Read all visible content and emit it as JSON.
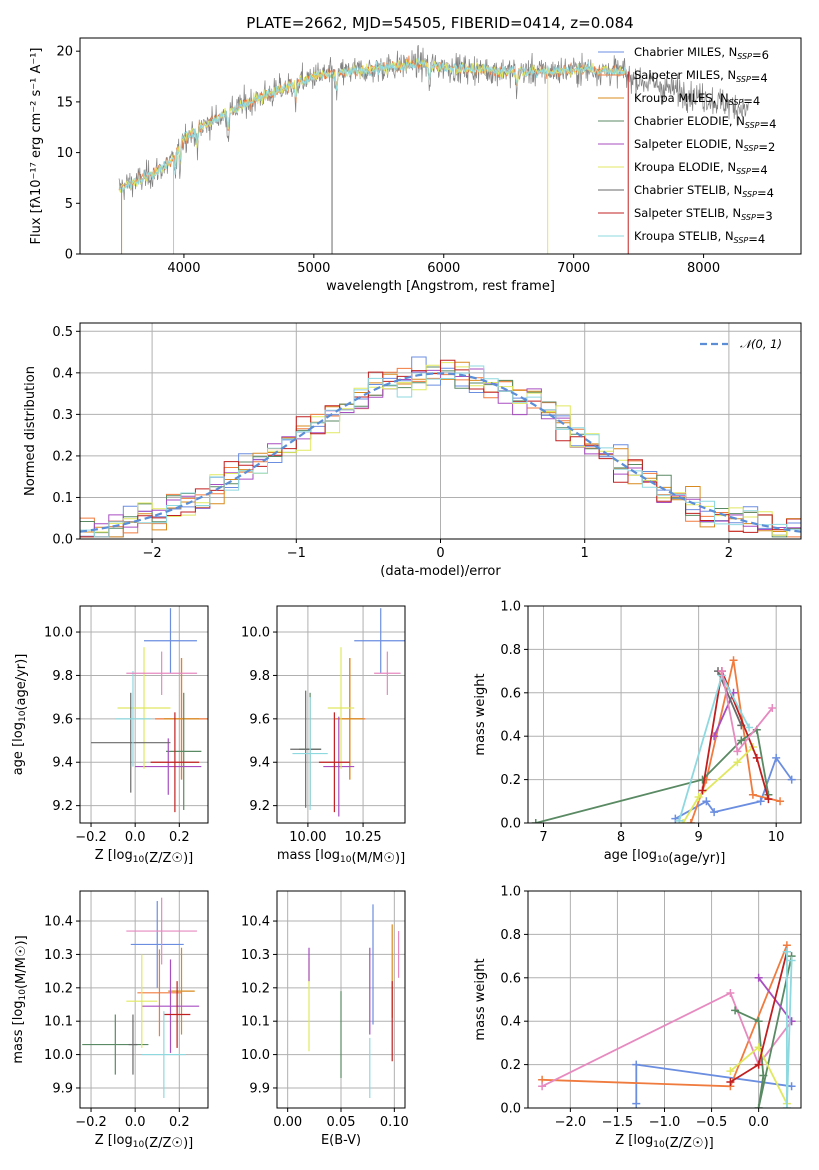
{
  "figure": {
    "title": "PLATE=2662, MJD=54505, FIBERID=0414, z=0.084"
  },
  "colors": {
    "series": [
      "#6b8ee0",
      "#f07b3f",
      "#d98a1e",
      "#5a8a63",
      "#a74ec0",
      "#e0e860",
      "#6a6a6a",
      "#c02020",
      "#8ed8e0"
    ],
    "pink": "#e68ac0",
    "normal": "#5b8ed6"
  },
  "chart_data": [
    {
      "id": "spectrum",
      "type": "line",
      "xlabel": "wavelength [Angstrom, rest frame]",
      "ylabel": "Flux [fλ10⁻¹⁷ erg cm⁻² s⁻¹ A⁻¹]",
      "xlim": [
        3200,
        8750
      ],
      "ylim": [
        0,
        21.3
      ],
      "xticks": [
        4000,
        5000,
        6000,
        7000,
        8000
      ],
      "yticks": [
        0,
        5,
        10,
        15,
        20
      ],
      "grid": false,
      "legend_position": "right",
      "data_range_x": [
        3500,
        7400
      ],
      "continuum_points": [
        [
          3500,
          6.5
        ],
        [
          3700,
          7.5
        ],
        [
          3900,
          9
        ],
        [
          4000,
          11.5
        ],
        [
          4200,
          13
        ],
        [
          4500,
          15
        ],
        [
          5000,
          17.5
        ],
        [
          5300,
          18
        ],
        [
          5800,
          18.8
        ],
        [
          6100,
          18.3
        ],
        [
          6500,
          18
        ],
        [
          6800,
          18
        ],
        [
          7100,
          18.2
        ],
        [
          7400,
          18
        ]
      ],
      "observed_extends_to": 8350,
      "series": [
        {
          "name": "Chabrier MILES, N_SSP=6"
        },
        {
          "name": "Salpeter MILES, N_SSP=4"
        },
        {
          "name": "Kroupa MILES, N_SSP=4"
        },
        {
          "name": "Chabrier ELODIE, N_SSP=4"
        },
        {
          "name": "Salpeter ELODIE, N_SSP=2"
        },
        {
          "name": "Kroupa ELODIE, N_SSP=4"
        },
        {
          "name": "Chabrier STELIB, N_SSP=4"
        },
        {
          "name": "Salpeter STELIB, N_SSP=3"
        },
        {
          "name": "Kroupa STELIB, N_SSP=4"
        }
      ]
    },
    {
      "id": "residuals",
      "type": "line",
      "xlabel": "(data-model)/error",
      "ylabel": "Normed distribution",
      "xlim": [
        -2.5,
        2.5
      ],
      "ylim": [
        0,
        0.52
      ],
      "xticks": [
        -2,
        -1,
        0,
        1,
        2
      ],
      "yticks": [
        0.0,
        0.1,
        0.2,
        0.3,
        0.4,
        0.5
      ],
      "grid": true,
      "legend": "𝒩(0, 1)",
      "legend_position": "top-right",
      "bin_width": 0.1
    },
    {
      "id": "age-vs-Z",
      "type": "scatter",
      "xlabel": "Z [log10(Z/Z☉)]",
      "ylabel": "age  [log10(age/yr)]",
      "xlim": [
        -0.25,
        0.33
      ],
      "ylim": [
        9.12,
        10.12
      ],
      "xticks": [
        -0.2,
        0.0,
        0.2
      ],
      "yticks": [
        9.2,
        9.4,
        9.6,
        9.8,
        10.0
      ],
      "grid": true,
      "points": [
        {
          "x": 0.16,
          "y": 9.96,
          "ex": 0.12,
          "ey": 0.15,
          "c": 0
        },
        {
          "x": 0.21,
          "y": 9.6,
          "ex": 0.12,
          "ey": 0.28,
          "c": 1
        },
        {
          "x": 0.21,
          "y": 9.6,
          "ex": 0.08,
          "ey": 0.28,
          "c": 2
        },
        {
          "x": 0.22,
          "y": 9.45,
          "ex": 0.08,
          "ey": 0.27,
          "c": 3
        },
        {
          "x": 0.15,
          "y": 9.38,
          "ex": 0.15,
          "ey": 0.13,
          "c": 4
        },
        {
          "x": 0.04,
          "y": 9.65,
          "ex": 0.12,
          "ey": 0.28,
          "c": 5
        },
        {
          "x": -0.02,
          "y": 9.49,
          "ex": 0.18,
          "ey": 0.23,
          "c": 6
        },
        {
          "x": 0.18,
          "y": 9.4,
          "ex": 0.11,
          "ey": 0.23,
          "c": 7
        },
        {
          "x": -0.01,
          "y": 9.6,
          "ex": 0.08,
          "ey": 0.22,
          "c": 8
        },
        {
          "x": 0.12,
          "y": 9.81,
          "ex": 0.16,
          "ey": 0.1,
          "c": "pink"
        }
      ]
    },
    {
      "id": "age-vs-mass",
      "type": "scatter",
      "xlabel": "mass [log10(M/M☉)]",
      "ylabel": "",
      "xlim": [
        9.86,
        10.44
      ],
      "ylim": [
        9.12,
        10.12
      ],
      "xticks": [
        10.0,
        10.25
      ],
      "yticks": [
        9.2,
        9.4,
        9.6,
        9.8,
        10.0
      ],
      "grid": true,
      "points": [
        {
          "x": 10.33,
          "y": 9.96,
          "ex": 0.12,
          "ey": 0.15,
          "c": 0
        },
        {
          "x": 10.19,
          "y": 9.6,
          "ex": 0.07,
          "ey": 0.28,
          "c": 1
        },
        {
          "x": 10.19,
          "y": 9.6,
          "ex": 0.06,
          "ey": 0.28,
          "c": 2
        },
        {
          "x": 10.01,
          "y": 9.46,
          "ex": 0.05,
          "ey": 0.26,
          "c": 3
        },
        {
          "x": 10.14,
          "y": 9.38,
          "ex": 0.07,
          "ey": 0.23,
          "c": 4
        },
        {
          "x": 10.15,
          "y": 9.65,
          "ex": 0.06,
          "ey": 0.28,
          "c": 5
        },
        {
          "x": 9.99,
          "y": 9.46,
          "ex": 0.07,
          "ey": 0.27,
          "c": 6
        },
        {
          "x": 10.12,
          "y": 9.4,
          "ex": 0.07,
          "ey": 0.23,
          "c": 7
        },
        {
          "x": 10.01,
          "y": 9.44,
          "ex": 0.08,
          "ey": 0.26,
          "c": 8
        },
        {
          "x": 10.36,
          "y": 9.81,
          "ex": 0.06,
          "ey": 0.1,
          "c": "pink"
        }
      ]
    },
    {
      "id": "weight-vs-age",
      "type": "line",
      "xlabel": "age  [log10(age/yr)]",
      "ylabel": "mass weight",
      "xlim": [
        6.8,
        10.32
      ],
      "ylim": [
        0,
        1.0
      ],
      "xticks": [
        7,
        8,
        9,
        10
      ],
      "yticks": [
        0.0,
        0.2,
        0.4,
        0.6,
        0.8,
        1.0
      ],
      "grid": true,
      "series": [
        {
          "c": 0,
          "points": [
            [
              8.7,
              0.02
            ],
            [
              9.1,
              0.1
            ],
            [
              9.2,
              0.05
            ],
            [
              9.8,
              0.1
            ],
            [
              10.0,
              0.3
            ],
            [
              10.2,
              0.2
            ]
          ]
        },
        {
          "c": 1,
          "points": [
            [
              8.9,
              0.0
            ],
            [
              9.1,
              0.2
            ],
            [
              9.45,
              0.75
            ],
            [
              9.7,
              0.13
            ],
            [
              10.05,
              0.1
            ]
          ]
        },
        {
          "c": 3,
          "points": [
            [
              6.9,
              0.0
            ],
            [
              9.05,
              0.2
            ],
            [
              9.55,
              0.38
            ],
            [
              9.75,
              0.43
            ],
            [
              9.9,
              0.13
            ]
          ]
        },
        {
          "c": 4,
          "points": [
            [
              9.2,
              0.4
            ],
            [
              9.45,
              0.6
            ]
          ]
        },
        {
          "c": 5,
          "points": [
            [
              8.8,
              0.0
            ],
            [
              9.0,
              0.12
            ],
            [
              9.5,
              0.28
            ],
            [
              9.7,
              0.35
            ]
          ]
        },
        {
          "c": 6,
          "points": [
            [
              9.25,
              0.7
            ],
            [
              9.55,
              0.45
            ]
          ]
        },
        {
          "c": 7,
          "points": [
            [
              9.05,
              0.15
            ],
            [
              9.3,
              0.7
            ],
            [
              9.75,
              0.3
            ],
            [
              9.9,
              0.11
            ]
          ]
        },
        {
          "c": 8,
          "points": [
            [
              8.75,
              0.01
            ],
            [
              9.3,
              0.68
            ],
            [
              9.65,
              0.44
            ]
          ]
        },
        {
          "c": "pink",
          "points": [
            [
              9.3,
              0.7
            ],
            [
              9.5,
              0.33
            ],
            [
              9.95,
              0.53
            ]
          ]
        }
      ]
    },
    {
      "id": "mass-vs-Z",
      "type": "scatter",
      "xlabel": "Z [log10(Z/Z☉)]",
      "ylabel": "mass [log10(M/M☉)]",
      "xlim": [
        -0.25,
        0.33
      ],
      "ylim": [
        9.84,
        10.49
      ],
      "xticks": [
        -0.2,
        0.0,
        0.2
      ],
      "yticks": [
        9.9,
        10.0,
        10.1,
        10.2,
        10.3,
        10.4
      ],
      "grid": true,
      "points": [
        {
          "x": 0.1,
          "y": 10.33,
          "ex": 0.12,
          "ey": 0.13,
          "c": 0
        },
        {
          "x": 0.11,
          "y": 10.185,
          "ex": 0.1,
          "ey": 0.13,
          "c": 1
        },
        {
          "x": 0.21,
          "y": 10.19,
          "ex": 0.06,
          "ey": 0.13,
          "c": 2
        },
        {
          "x": -0.09,
          "y": 10.03,
          "ex": 0.15,
          "ey": 0.09,
          "c": 3
        },
        {
          "x": 0.16,
          "y": 10.145,
          "ex": 0.13,
          "ey": 0.14,
          "c": 4
        },
        {
          "x": 0.03,
          "y": 10.16,
          "ex": 0.07,
          "ey": 0.14,
          "c": 5
        },
        {
          "x": -0.01,
          "y": 10.03,
          "ex": 0.02,
          "ey": 0.09,
          "c": 6
        },
        {
          "x": 0.19,
          "y": 10.12,
          "ex": 0.06,
          "ey": 0.1,
          "c": 7
        },
        {
          "x": 0.13,
          "y": 10.0,
          "ex": 0.1,
          "ey": 0.13,
          "c": 8
        },
        {
          "x": 0.12,
          "y": 10.37,
          "ex": 0.16,
          "ey": 0.1,
          "c": "pink"
        }
      ]
    },
    {
      "id": "mass-vs-EBV",
      "type": "scatter",
      "xlabel": "E(B-V)",
      "ylabel": "",
      "xlim": [
        -0.01,
        0.11
      ],
      "ylim": [
        9.84,
        10.49
      ],
      "xticks": [
        0.0,
        0.05,
        0.1
      ],
      "yticks": [
        9.9,
        10.0,
        10.1,
        10.2,
        10.3,
        10.4
      ],
      "grid": true,
      "points": [
        {
          "x": 0.08,
          "y": 10.27,
          "ey": 0.18,
          "c": 0
        },
        {
          "x": 0.02,
          "y": 10.15,
          "ey": 0.14,
          "c": 5
        },
        {
          "x": 0.05,
          "y": 10.06,
          "ey": 0.13,
          "c": 3
        },
        {
          "x": 0.077,
          "y": 10.19,
          "ey": 0.13,
          "c": 4
        },
        {
          "x": 0.098,
          "y": 10.25,
          "ey": 0.14,
          "c": 2
        },
        {
          "x": 0.098,
          "y": 10.1,
          "ey": 0.12,
          "c": 7
        },
        {
          "x": 0.077,
          "y": 9.96,
          "ey": 0.09,
          "c": 8
        },
        {
          "x": 0.02,
          "y": 10.27,
          "ey": 0.05,
          "c": 4
        },
        {
          "x": 0.104,
          "y": 10.3,
          "ey": 0.07,
          "c": "pink"
        }
      ]
    },
    {
      "id": "weight-vs-Z",
      "type": "line",
      "xlabel": "Z [log10(Z/Z☉)]",
      "ylabel": "mass weight",
      "xlim": [
        -2.45,
        0.45
      ],
      "ylim": [
        0,
        1.0
      ],
      "xticks": [
        -2.0,
        -1.5,
        -1.0,
        -0.5,
        0.0
      ],
      "yticks": [
        0.0,
        0.2,
        0.4,
        0.6,
        0.8,
        1.0
      ],
      "grid": true,
      "series": [
        {
          "c": 0,
          "points": [
            [
              -1.3,
              0.02
            ],
            [
              -1.3,
              0.2
            ],
            [
              0.35,
              0.1
            ]
          ]
        },
        {
          "c": 1,
          "points": [
            [
              -2.3,
              0.13
            ],
            [
              -0.3,
              0.1
            ],
            [
              0.3,
              0.75
            ]
          ]
        },
        {
          "c": "pink",
          "points": [
            [
              -2.3,
              0.1
            ],
            [
              -0.3,
              0.53
            ],
            [
              0.0,
              0.2
            ],
            [
              0.35,
              0.4
            ]
          ]
        },
        {
          "c": 3,
          "points": [
            [
              -0.25,
              0.45
            ],
            [
              0.0,
              0.4
            ],
            [
              0.05,
              0.15
            ],
            [
              0.0,
              0.0
            ],
            [
              0.35,
              0.7
            ]
          ]
        },
        {
          "c": 4,
          "points": [
            [
              0.0,
              0.6
            ],
            [
              0.35,
              0.4
            ]
          ]
        },
        {
          "c": 5,
          "points": [
            [
              -0.3,
              0.17
            ],
            [
              0.0,
              0.28
            ],
            [
              0.3,
              0.02
            ]
          ]
        },
        {
          "c": 7,
          "points": [
            [
              -0.3,
              0.12
            ],
            [
              0.0,
              0.2
            ],
            [
              0.3,
              0.72
            ]
          ]
        },
        {
          "c": 8,
          "points": [
            [
              0.3,
              0.72
            ],
            [
              0.3,
              0.0
            ],
            [
              0.35,
              0.68
            ]
          ]
        }
      ]
    }
  ]
}
